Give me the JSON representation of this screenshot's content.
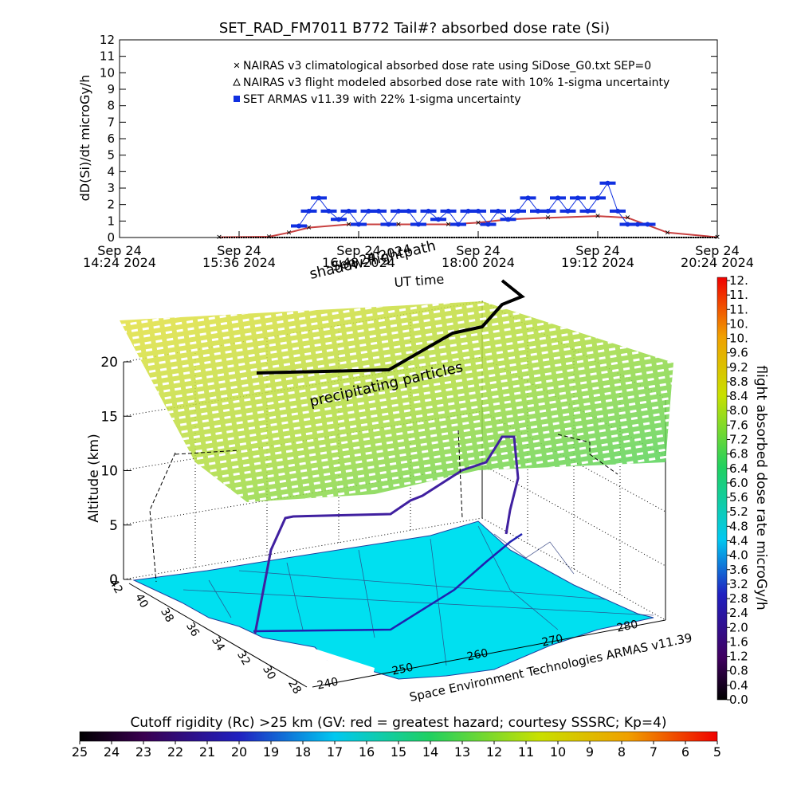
{
  "chart_data": [
    {
      "type": "scatter",
      "title": "SET_RAD_FM7011  B772 Tail#? absorbed dose rate (Si)",
      "ylabel": "dD(Si)/dt microGy/h",
      "ylim": [
        0,
        12
      ],
      "yticks": [
        "0",
        "1",
        "2",
        "3",
        "4",
        "5",
        "6",
        "7",
        "8",
        "9",
        "10",
        "11",
        "12"
      ],
      "xticks": [
        {
          "date": "Sep 24",
          "time": "14:24 2024",
          "hours": 0
        },
        {
          "date": "Sep 24",
          "time": "15:36 2024",
          "hours": 1.2
        },
        {
          "date": "Sep 24",
          "time": "16:48 2024",
          "hours": 2.4
        },
        {
          "date": "Sep 24",
          "time": "18:00 2024",
          "hours": 3.6
        },
        {
          "date": "Sep 24",
          "time": "19:12 2024",
          "hours": 4.8
        },
        {
          "date": "Sep 24",
          "time": "20:24 2024",
          "hours": 6.0
        }
      ],
      "legend": [
        {
          "label": "NAIRAS v3 climatological absorbed dose rate using SiDose_G0.txt SEP=0",
          "color": "#e06060",
          "marker": "x"
        },
        {
          "label": "NAIRAS v3 flight modeled absorbed dose rate with 10% 1-sigma uncertainty",
          "color": "#000000",
          "marker": "triangle"
        },
        {
          "label": "SET ARMAS v11.39 with 22% 1-sigma uncertainty",
          "color": "#1030e0",
          "marker": "square"
        }
      ],
      "series": [
        {
          "name": "NAIRAS v3 climatological absorbed dose rate using SiDose_G0.txt SEP=0",
          "x": [
            1.0,
            1.5,
            1.7,
            1.9,
            2.3,
            2.8,
            3.3,
            3.6,
            3.9,
            4.3,
            4.8,
            5.1,
            5.5,
            6.0
          ],
          "y": [
            0.02,
            0.05,
            0.3,
            0.6,
            0.8,
            0.8,
            0.8,
            0.9,
            1.1,
            1.2,
            1.3,
            1.2,
            0.3,
            0.02
          ]
        },
        {
          "name": "NAIRAS v3 flight modeled absorbed dose rate with 10% 1-sigma uncertainty",
          "x": [
            1.0,
            6.0
          ],
          "y": [
            0.0,
            0.0
          ]
        },
        {
          "name": "SET ARMAS v11.39 with 22% 1-sigma uncertainty",
          "x": [
            1.8,
            1.9,
            2.0,
            2.1,
            2.2,
            2.3,
            2.4,
            2.5,
            2.6,
            2.7,
            2.8,
            2.9,
            3.0,
            3.1,
            3.2,
            3.3,
            3.4,
            3.5,
            3.6,
            3.7,
            3.8,
            3.9,
            4.0,
            4.1,
            4.2,
            4.3,
            4.4,
            4.5,
            4.6,
            4.7,
            4.8,
            4.9,
            5.0,
            5.1,
            5.2,
            5.3
          ],
          "y": [
            0.7,
            1.6,
            2.4,
            1.6,
            1.1,
            1.6,
            0.8,
            1.6,
            1.6,
            0.8,
            1.6,
            1.6,
            0.8,
            1.6,
            1.1,
            1.6,
            0.8,
            1.6,
            1.6,
            0.8,
            1.6,
            1.1,
            1.6,
            2.4,
            1.6,
            1.6,
            2.4,
            1.6,
            2.4,
            1.6,
            2.4,
            3.3,
            1.6,
            0.8,
            0.8,
            0.8
          ]
        }
      ]
    },
    {
      "type": "scatter",
      "title": "",
      "zlabel": "Altitude (km)",
      "zticks": [
        "0",
        "5",
        "10",
        "15",
        "20"
      ],
      "lat_ticks": [
        "42",
        "40",
        "38",
        "36",
        "34",
        "32",
        "30",
        "28"
      ],
      "lon_ticks": [
        "240",
        "250",
        "260",
        "270",
        "280"
      ],
      "annotations": [
        "shadow flightpath",
        "UT time",
        "precipitating particles",
        "Space Environment Technologies ARMAS v11.39"
      ],
      "shadow_time_label": "Sep 24 2024",
      "colorbar": {
        "label": "flight absorbed dose rate microGy/h",
        "ticks": [
          "0.0",
          "0.4",
          "0.8",
          "1.2",
          "1.6",
          "2.0",
          "2.4",
          "2.8",
          "3.2",
          "3.6",
          "4.0",
          "4.4",
          "4.8",
          "5.2",
          "5.6",
          "6.0",
          "6.4",
          "6.8",
          "7.2",
          "7.6",
          "8.0",
          "8.4",
          "8.8",
          "9.2",
          "9.6",
          "10.",
          "10.",
          "11.",
          "11.",
          "12."
        ]
      }
    },
    {
      "type": "heatmap",
      "title": "Cutoff rigidity (Rc) >25 km (GV: red = greatest hazard; courtesy SSSRC; Kp=4)",
      "ticks": [
        "25",
        "24",
        "23",
        "22",
        "21",
        "20",
        "19",
        "18",
        "17",
        "16",
        "15",
        "14",
        "13",
        "12",
        "11",
        "10",
        "9",
        "8",
        "7",
        "6",
        "5"
      ]
    }
  ]
}
